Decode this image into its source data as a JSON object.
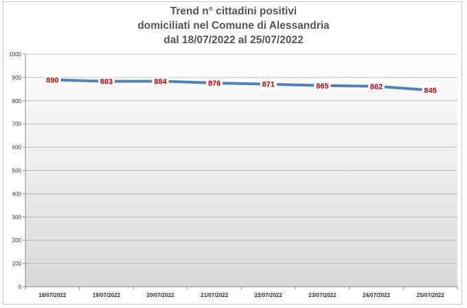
{
  "chart_data": {
    "type": "line",
    "title_lines": [
      "Trend n° cittadini positivi",
      "domiciliati nel Comune di Alessandria",
      "dal 18/07/2022 al 25/07/2022"
    ],
    "categories": [
      "18/07/2022",
      "19/07/2022",
      "20/07/2022",
      "21/07/2022",
      "22/07/2022",
      "23/07/2022",
      "24/07/2022",
      "25/07/2022"
    ],
    "series": [
      {
        "values": [
          890,
          883,
          884,
          876,
          871,
          865,
          862,
          845
        ]
      }
    ],
    "ylim": [
      0,
      1000
    ],
    "yticks": [
      0,
      100,
      200,
      300,
      400,
      500,
      600,
      700,
      800,
      900,
      1000
    ],
    "grid": true,
    "legend": "none",
    "colors": {
      "line": "#4f81bd",
      "data_label": "#c00000",
      "plot_background_top": "#ffffff",
      "plot_background_bottom": "#d9d9d9",
      "grid": "#b0b0b0"
    }
  }
}
